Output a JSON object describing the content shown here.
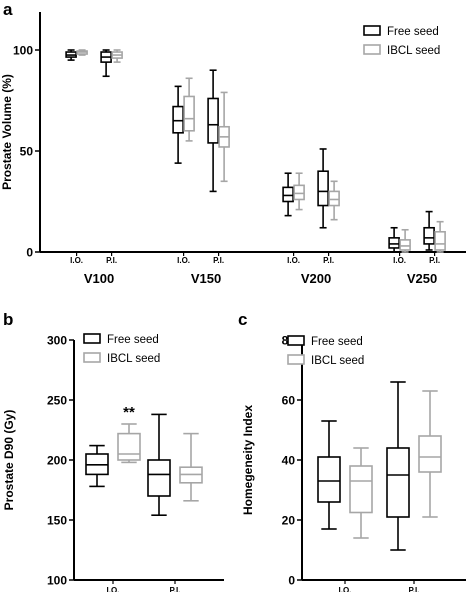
{
  "colors": {
    "free": "#000000",
    "ibcl": "#a6a6a6",
    "axis": "#000000"
  },
  "chart_data": [
    {
      "panel": "a",
      "type": "box",
      "ylabel": "Prostate Volume (%)",
      "ylim": [
        0,
        120
      ],
      "yticks": [
        0,
        50,
        100
      ],
      "groups": [
        "V100",
        "V150",
        "V200",
        "V250"
      ],
      "subgroups": [
        "I.O.",
        "P.I."
      ],
      "legend": [
        "Free seed",
        "IBCL seed"
      ],
      "legend_position": "top-right",
      "series": [
        {
          "name": "Free seed",
          "boxes": [
            {
              "group": "V100",
              "sub": "I.O.",
              "min": 95,
              "q1": 96.5,
              "median": 97.5,
              "q3": 99,
              "max": 100
            },
            {
              "group": "V100",
              "sub": "P.I.",
              "min": 87,
              "q1": 94,
              "median": 96.5,
              "q3": 99,
              "max": 100
            },
            {
              "group": "V150",
              "sub": "I.O.",
              "min": 44,
              "q1": 59,
              "median": 65,
              "q3": 72,
              "max": 82
            },
            {
              "group": "V150",
              "sub": "P.I.",
              "min": 30,
              "q1": 54,
              "median": 63,
              "q3": 76,
              "max": 90
            },
            {
              "group": "V200",
              "sub": "I.O.",
              "min": 18,
              "q1": 25,
              "median": 28,
              "q3": 32,
              "max": 39
            },
            {
              "group": "V200",
              "sub": "P.I.",
              "min": 12,
              "q1": 23,
              "median": 30,
              "q3": 40,
              "max": 51
            },
            {
              "group": "V250",
              "sub": "I.O.",
              "min": 0,
              "q1": 2,
              "median": 4,
              "q3": 7,
              "max": 12
            },
            {
              "group": "V250",
              "sub": "P.I.",
              "min": 1,
              "q1": 4,
              "median": 7,
              "q3": 12,
              "max": 20
            }
          ]
        },
        {
          "name": "IBCL seed",
          "boxes": [
            {
              "group": "V100",
              "sub": "I.O.",
              "min": 97.5,
              "q1": 98,
              "median": 99,
              "q3": 99.5,
              "max": 100
            },
            {
              "group": "V100",
              "sub": "P.I.",
              "min": 94,
              "q1": 96,
              "median": 97.5,
              "q3": 99,
              "max": 100
            },
            {
              "group": "V150",
              "sub": "I.O.",
              "min": 55,
              "q1": 60,
              "median": 66,
              "q3": 77,
              "max": 86
            },
            {
              "group": "V150",
              "sub": "P.I.",
              "min": 35,
              "q1": 52,
              "median": 57,
              "q3": 62,
              "max": 79
            },
            {
              "group": "V200",
              "sub": "I.O.",
              "min": 21,
              "q1": 26,
              "median": 29,
              "q3": 33,
              "max": 39
            },
            {
              "group": "V200",
              "sub": "P.I.",
              "min": 16,
              "q1": 23,
              "median": 26,
              "q3": 30,
              "max": 35
            },
            {
              "group": "V250",
              "sub": "I.O.",
              "min": 0,
              "q1": 1,
              "median": 3,
              "q3": 6,
              "max": 11
            },
            {
              "group": "V250",
              "sub": "P.I.",
              "min": 0,
              "q1": 1,
              "median": 4,
              "q3": 10,
              "max": 15
            }
          ]
        }
      ]
    },
    {
      "panel": "b",
      "type": "box",
      "ylabel": "Prostate D90 (Gy)",
      "ylim": [
        100,
        300
      ],
      "yticks": [
        100,
        150,
        200,
        250,
        300
      ],
      "groups": [
        "I.O.",
        "P.I."
      ],
      "legend": [
        "Free seed",
        "IBCL seed"
      ],
      "legend_position": "top-left",
      "annotations": [
        {
          "text": "**",
          "group": "I.O.",
          "series": "IBCL seed"
        }
      ],
      "series": [
        {
          "name": "Free seed",
          "boxes": [
            {
              "group": "I.O.",
              "min": 178,
              "q1": 188,
              "median": 196,
              "q3": 205,
              "max": 212
            },
            {
              "group": "P.I.",
              "min": 154,
              "q1": 170,
              "median": 188,
              "q3": 200,
              "max": 238
            }
          ]
        },
        {
          "name": "IBCL seed",
          "boxes": [
            {
              "group": "I.O.",
              "min": 198,
              "q1": 200,
              "median": 205,
              "q3": 222,
              "max": 230
            },
            {
              "group": "P.I.",
              "min": 166,
              "q1": 181,
              "median": 188,
              "q3": 194,
              "max": 222
            }
          ]
        }
      ]
    },
    {
      "panel": "c",
      "type": "box",
      "ylabel": "Homegeneity Index",
      "ylim": [
        0,
        80
      ],
      "yticks": [
        0,
        20,
        40,
        60,
        80
      ],
      "groups": [
        "I.O.",
        "P.I."
      ],
      "legend": [
        "Free seed",
        "IBCL seed"
      ],
      "legend_position": "top-left",
      "series": [
        {
          "name": "Free seed",
          "boxes": [
            {
              "group": "I.O.",
              "min": 17,
              "q1": 26,
              "median": 33,
              "q3": 41,
              "max": 53
            },
            {
              "group": "P.I.",
              "min": 10,
              "q1": 21,
              "median": 35,
              "q3": 44,
              "max": 66
            }
          ]
        },
        {
          "name": "IBCL seed",
          "boxes": [
            {
              "group": "I.O.",
              "min": 14,
              "q1": 22.5,
              "median": 33,
              "q3": 38,
              "max": 44
            },
            {
              "group": "P.I.",
              "min": 21,
              "q1": 36,
              "median": 41,
              "q3": 48,
              "max": 63
            }
          ]
        }
      ]
    }
  ]
}
